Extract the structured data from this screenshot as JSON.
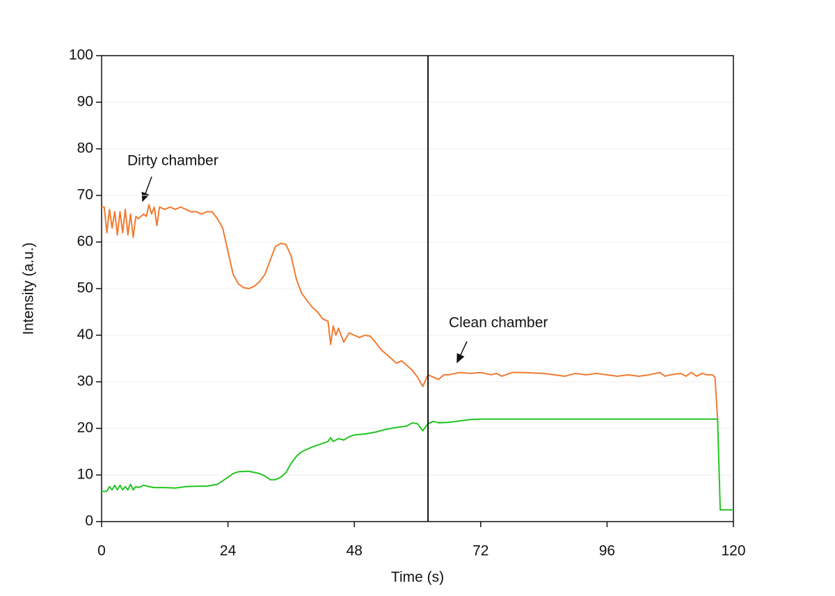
{
  "chart_data": {
    "type": "line",
    "xlabel": "Time (s)",
    "ylabel": "Intensity (a.u.)",
    "xlim": [
      0,
      120
    ],
    "xticks": [
      0,
      24,
      48,
      72,
      96,
      120
    ],
    "ylim": [
      0,
      100
    ],
    "yticks": [
      0,
      10,
      20,
      30,
      40,
      50,
      60,
      70,
      80,
      90,
      100
    ],
    "grid": true,
    "vline": 62,
    "annotations": [
      "Dirty chamber",
      "Clean chamber"
    ],
    "series": [
      {
        "color": "#f07a30",
        "x": [
          0,
          0.5,
          1,
          1.5,
          2,
          2.5,
          3,
          3.5,
          4,
          4.5,
          5,
          5.5,
          6,
          6.5,
          7,
          8,
          8.5,
          9,
          9.5,
          10,
          10.5,
          11,
          12,
          13,
          14,
          15,
          16,
          17,
          18,
          19,
          20,
          21,
          22,
          23,
          24,
          25,
          26,
          27,
          28,
          29,
          30,
          31,
          32,
          33,
          34,
          35,
          36,
          37,
          38,
          39,
          40,
          41,
          42,
          43,
          43.5,
          44,
          44.5,
          45,
          46,
          47,
          48,
          49,
          50,
          51,
          52,
          53,
          54,
          55,
          56,
          57,
          58,
          59,
          60,
          61,
          62,
          63,
          64,
          65,
          66,
          68,
          70,
          72,
          74,
          75,
          76,
          78,
          80,
          84,
          86,
          88,
          90,
          92,
          94,
          96,
          98,
          100,
          102,
          104,
          106,
          107,
          108,
          110,
          111,
          112,
          113,
          114,
          115,
          116,
          116.5,
          117
        ],
        "values": [
          67.5,
          67.5,
          62,
          67,
          63,
          66.5,
          61.5,
          66.5,
          62,
          67,
          61.5,
          66,
          61,
          65.5,
          65,
          66,
          65.5,
          68,
          66,
          67.5,
          63.5,
          67.5,
          67,
          67.5,
          67,
          67.5,
          67,
          66.5,
          66.5,
          66,
          66.5,
          66.5,
          65,
          63,
          58,
          53,
          51,
          50.2,
          50,
          50.5,
          51.5,
          53,
          56,
          59,
          59.7,
          59.5,
          57,
          52,
          49,
          47.5,
          46,
          45,
          43.5,
          43,
          38,
          42,
          40,
          41.5,
          38.5,
          40.5,
          40,
          39.5,
          40,
          39.8,
          38.5,
          37,
          36,
          35,
          34,
          34.5,
          33.5,
          32.5,
          31,
          29,
          31.5,
          31,
          30.5,
          31.5,
          31.5,
          32,
          31.8,
          32,
          31.5,
          31.8,
          31.2,
          32,
          32,
          31.8,
          31.5,
          31.2,
          31.8,
          31.5,
          31.8,
          31.5,
          31.2,
          31.5,
          31.2,
          31.5,
          32,
          31.2,
          31.5,
          31.8,
          31.2,
          32,
          31.2,
          31.8,
          31.5,
          31.5,
          31,
          22
        ]
      },
      {
        "color": "#22c422",
        "x": [
          0,
          1,
          1.5,
          2,
          2.5,
          3,
          3.5,
          4,
          4.5,
          5,
          5.5,
          6,
          6.5,
          7,
          8,
          9,
          10,
          12,
          14,
          16,
          18,
          20,
          22,
          24,
          25,
          26,
          28,
          30,
          31,
          32,
          33,
          34,
          35,
          36,
          37,
          38,
          40,
          42,
          43,
          43.5,
          44,
          45,
          46,
          47,
          48,
          50,
          52,
          54,
          56,
          58,
          59,
          60,
          61,
          62,
          63,
          64,
          66,
          68,
          70,
          72,
          74,
          80,
          90,
          100,
          110,
          116,
          117,
          117.5,
          120
        ],
        "values": [
          6.5,
          6.5,
          7.5,
          6.8,
          7.8,
          6.8,
          7.8,
          6.8,
          7.5,
          6.8,
          8,
          6.8,
          7.5,
          7.3,
          7.8,
          7.5,
          7.3,
          7.3,
          7.2,
          7.5,
          7.6,
          7.6,
          8,
          9.5,
          10.3,
          10.7,
          10.8,
          10.3,
          9.8,
          9,
          9,
          9.5,
          10.5,
          12.5,
          14,
          15,
          16,
          16.8,
          17.2,
          18,
          17.2,
          17.8,
          17.5,
          18.2,
          18.6,
          18.8,
          19.2,
          19.8,
          20.2,
          20.5,
          21.2,
          21,
          19.5,
          21,
          21.5,
          21.2,
          21.3,
          21.6,
          21.9,
          22,
          22,
          22,
          22,
          22,
          22,
          22,
          22,
          2.5,
          2.5
        ]
      }
    ]
  }
}
